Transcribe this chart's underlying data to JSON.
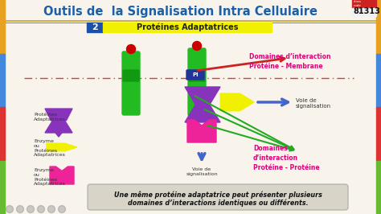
{
  "title": "Outils de  la Signalisation Intra Cellulaire",
  "subtitle_num": "2",
  "subtitle_text": "Protéines Adaptatrices",
  "code_text": "81313",
  "bg_color": "#f8f4ec",
  "title_color": "#1a5fa8",
  "subtitle_bg": "#f0f000",
  "subtitle_num_bg": "#1a4faa",
  "annotation1": "Domaines d’interaction\nProtéine - Membrane",
  "annotation2": "Domaines\nd’interaction\nProtéine - Protéine",
  "annotation3": "Voie de\nsignalisation",
  "annotation4": "Voie de\nsignalisation",
  "label1": "Protéines\nAdaptatrices",
  "label2": "Enzyme\nou\nProtéines\nAdaptatrices",
  "label3": "Enzyme\nou\nProtéines\nAdaptatrices",
  "bottom_text1": "Une même protéine adaptatrice peut présenter plusieurs",
  "bottom_text2": "domaines d’interactions identiques ou différents.",
  "border_colors_left": [
    "#e8a020",
    "#4488dd",
    "#dd3333",
    "#66bb33"
  ],
  "green_protein": "#22bb22",
  "purple_adapter": "#8833bb",
  "yellow_enzyme": "#f0f000",
  "pink_enzyme": "#ee2299",
  "dark_navy": "#223399",
  "red_dot": "#cc0000",
  "membrane_red": "#cc2222",
  "arrow_blue": "#4466cc",
  "arrow_green": "#22aa22",
  "arrow_red": "#cc2222",
  "ann_color": "#dd0077"
}
